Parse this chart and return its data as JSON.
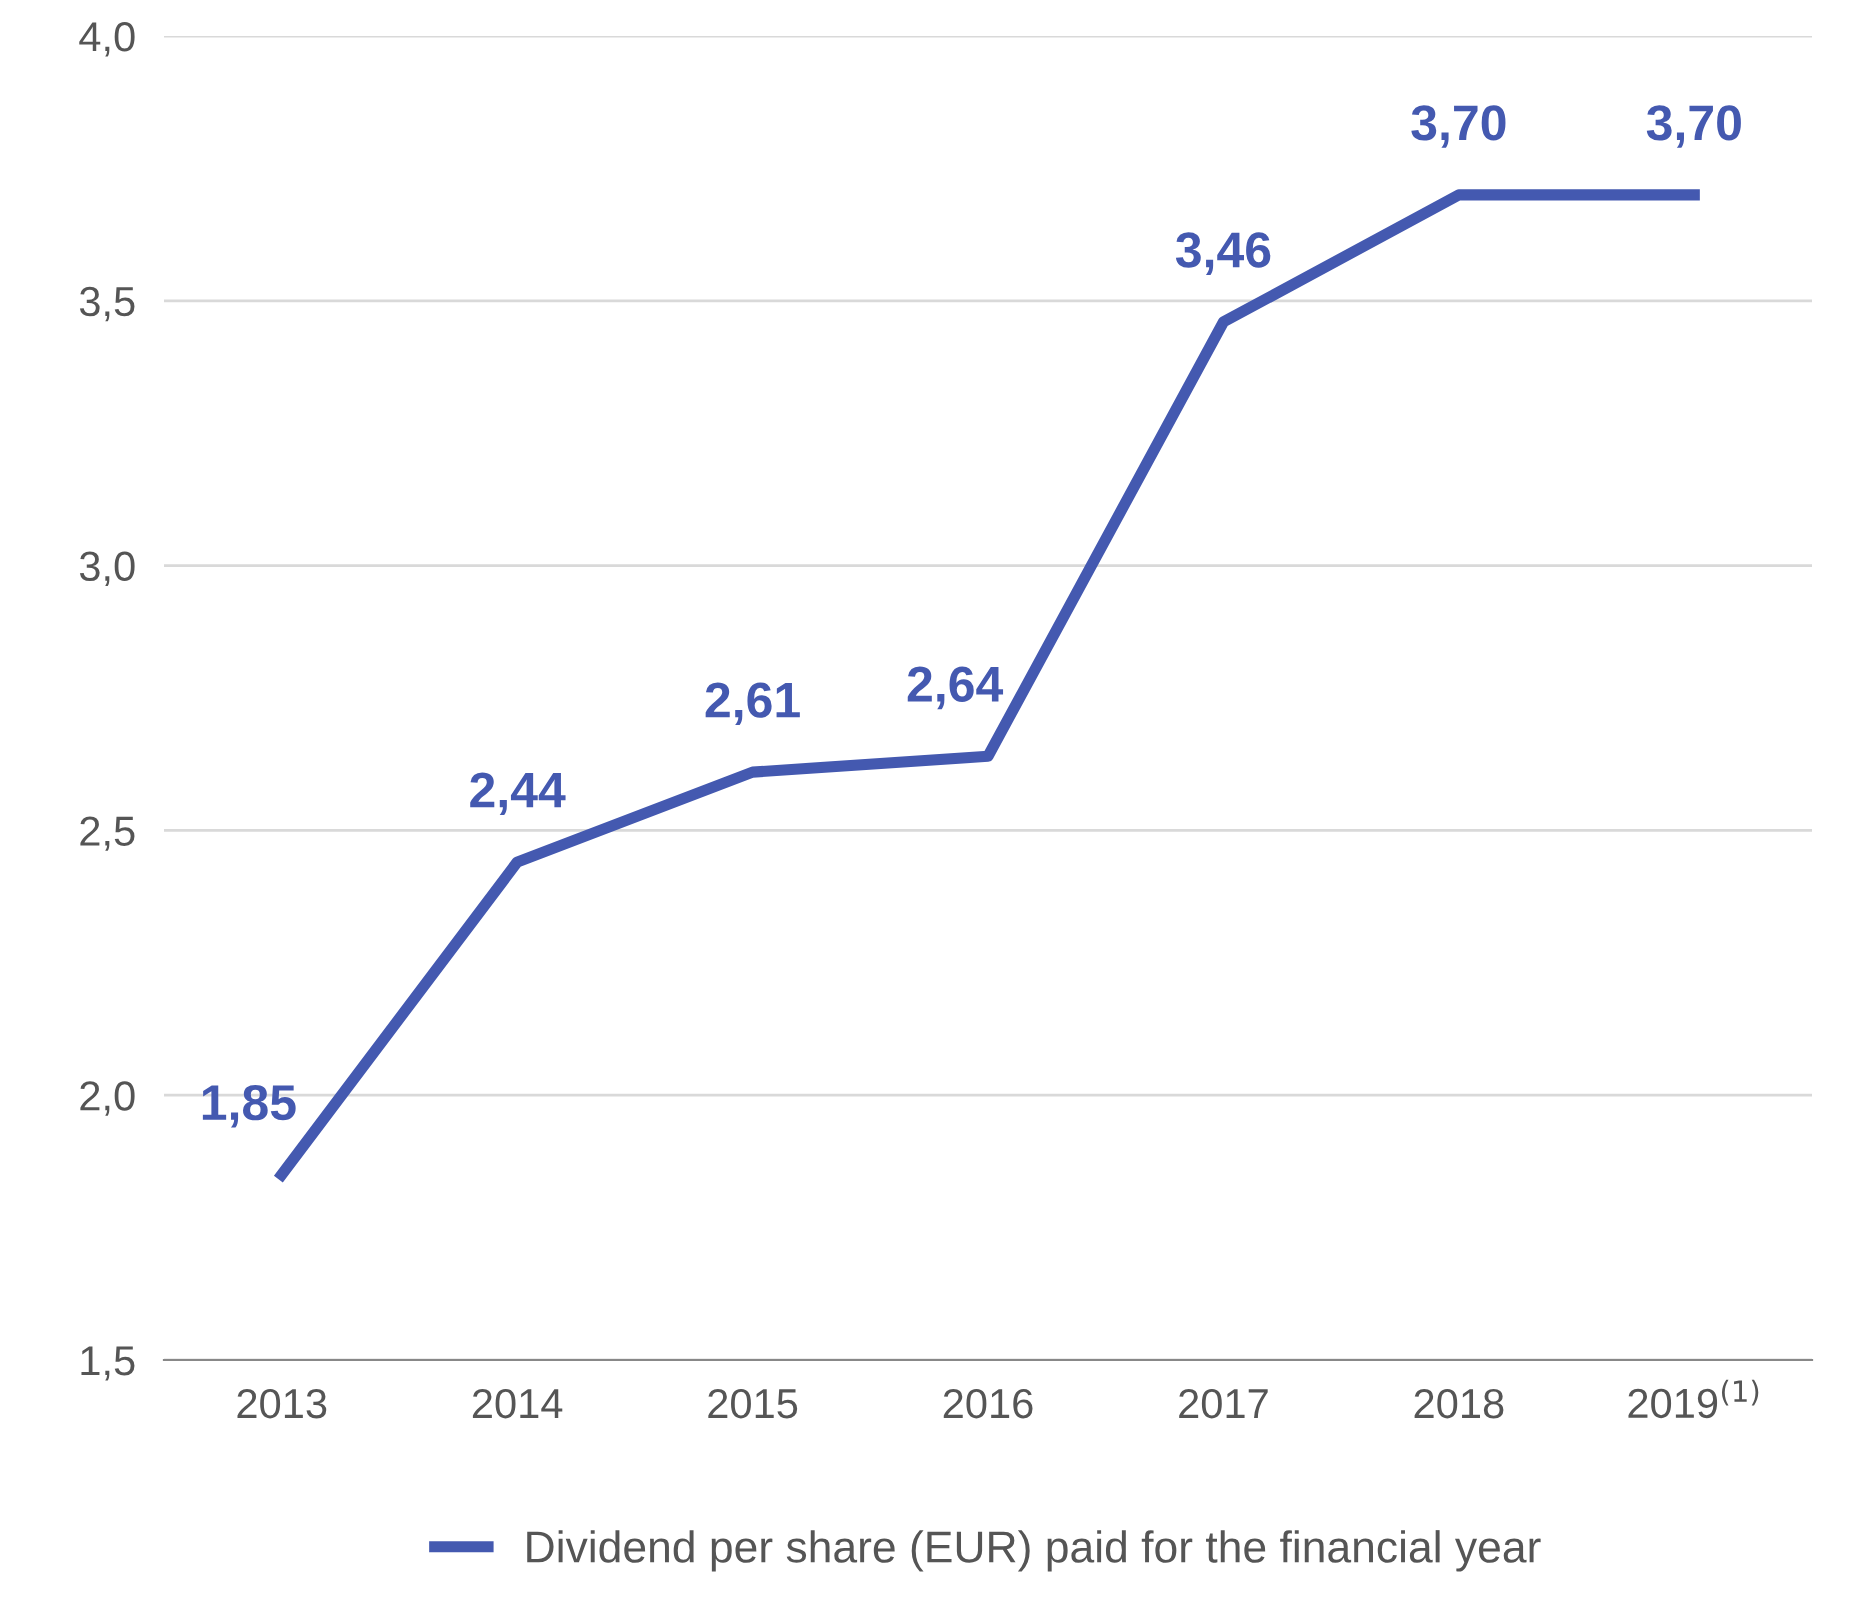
{
  "chart_data": {
    "type": "line",
    "categories": [
      "2013",
      "2014",
      "2015",
      "2016",
      "2017",
      "2018",
      "2019$^{(1)}$"
    ],
    "series": [
      {
        "name": "Dividend per share (EUR) paid for the financial year",
        "color": "#4459b0",
        "values": [
          1.85,
          2.44,
          2.61,
          2.64,
          3.46,
          3.7,
          3.7
        ],
        "value_labels": [
          "1,85",
          "2,44",
          "2,61",
          "2,64",
          "3,46",
          "3,70",
          "3,70"
        ]
      }
    ],
    "ylim": [
      1.5,
      4.0
    ],
    "yticks": [
      {
        "value": 1.5,
        "label": "1,5"
      },
      {
        "value": 2.0,
        "label": "2,0"
      },
      {
        "value": 2.5,
        "label": "2,5"
      },
      {
        "value": 3.0,
        "label": "3,0"
      },
      {
        "value": 3.5,
        "label": "3,5"
      },
      {
        "value": 4.0,
        "label": "4,0"
      }
    ],
    "grid": "y",
    "legend": "bottom",
    "marker": "none",
    "line_style": "solid"
  }
}
